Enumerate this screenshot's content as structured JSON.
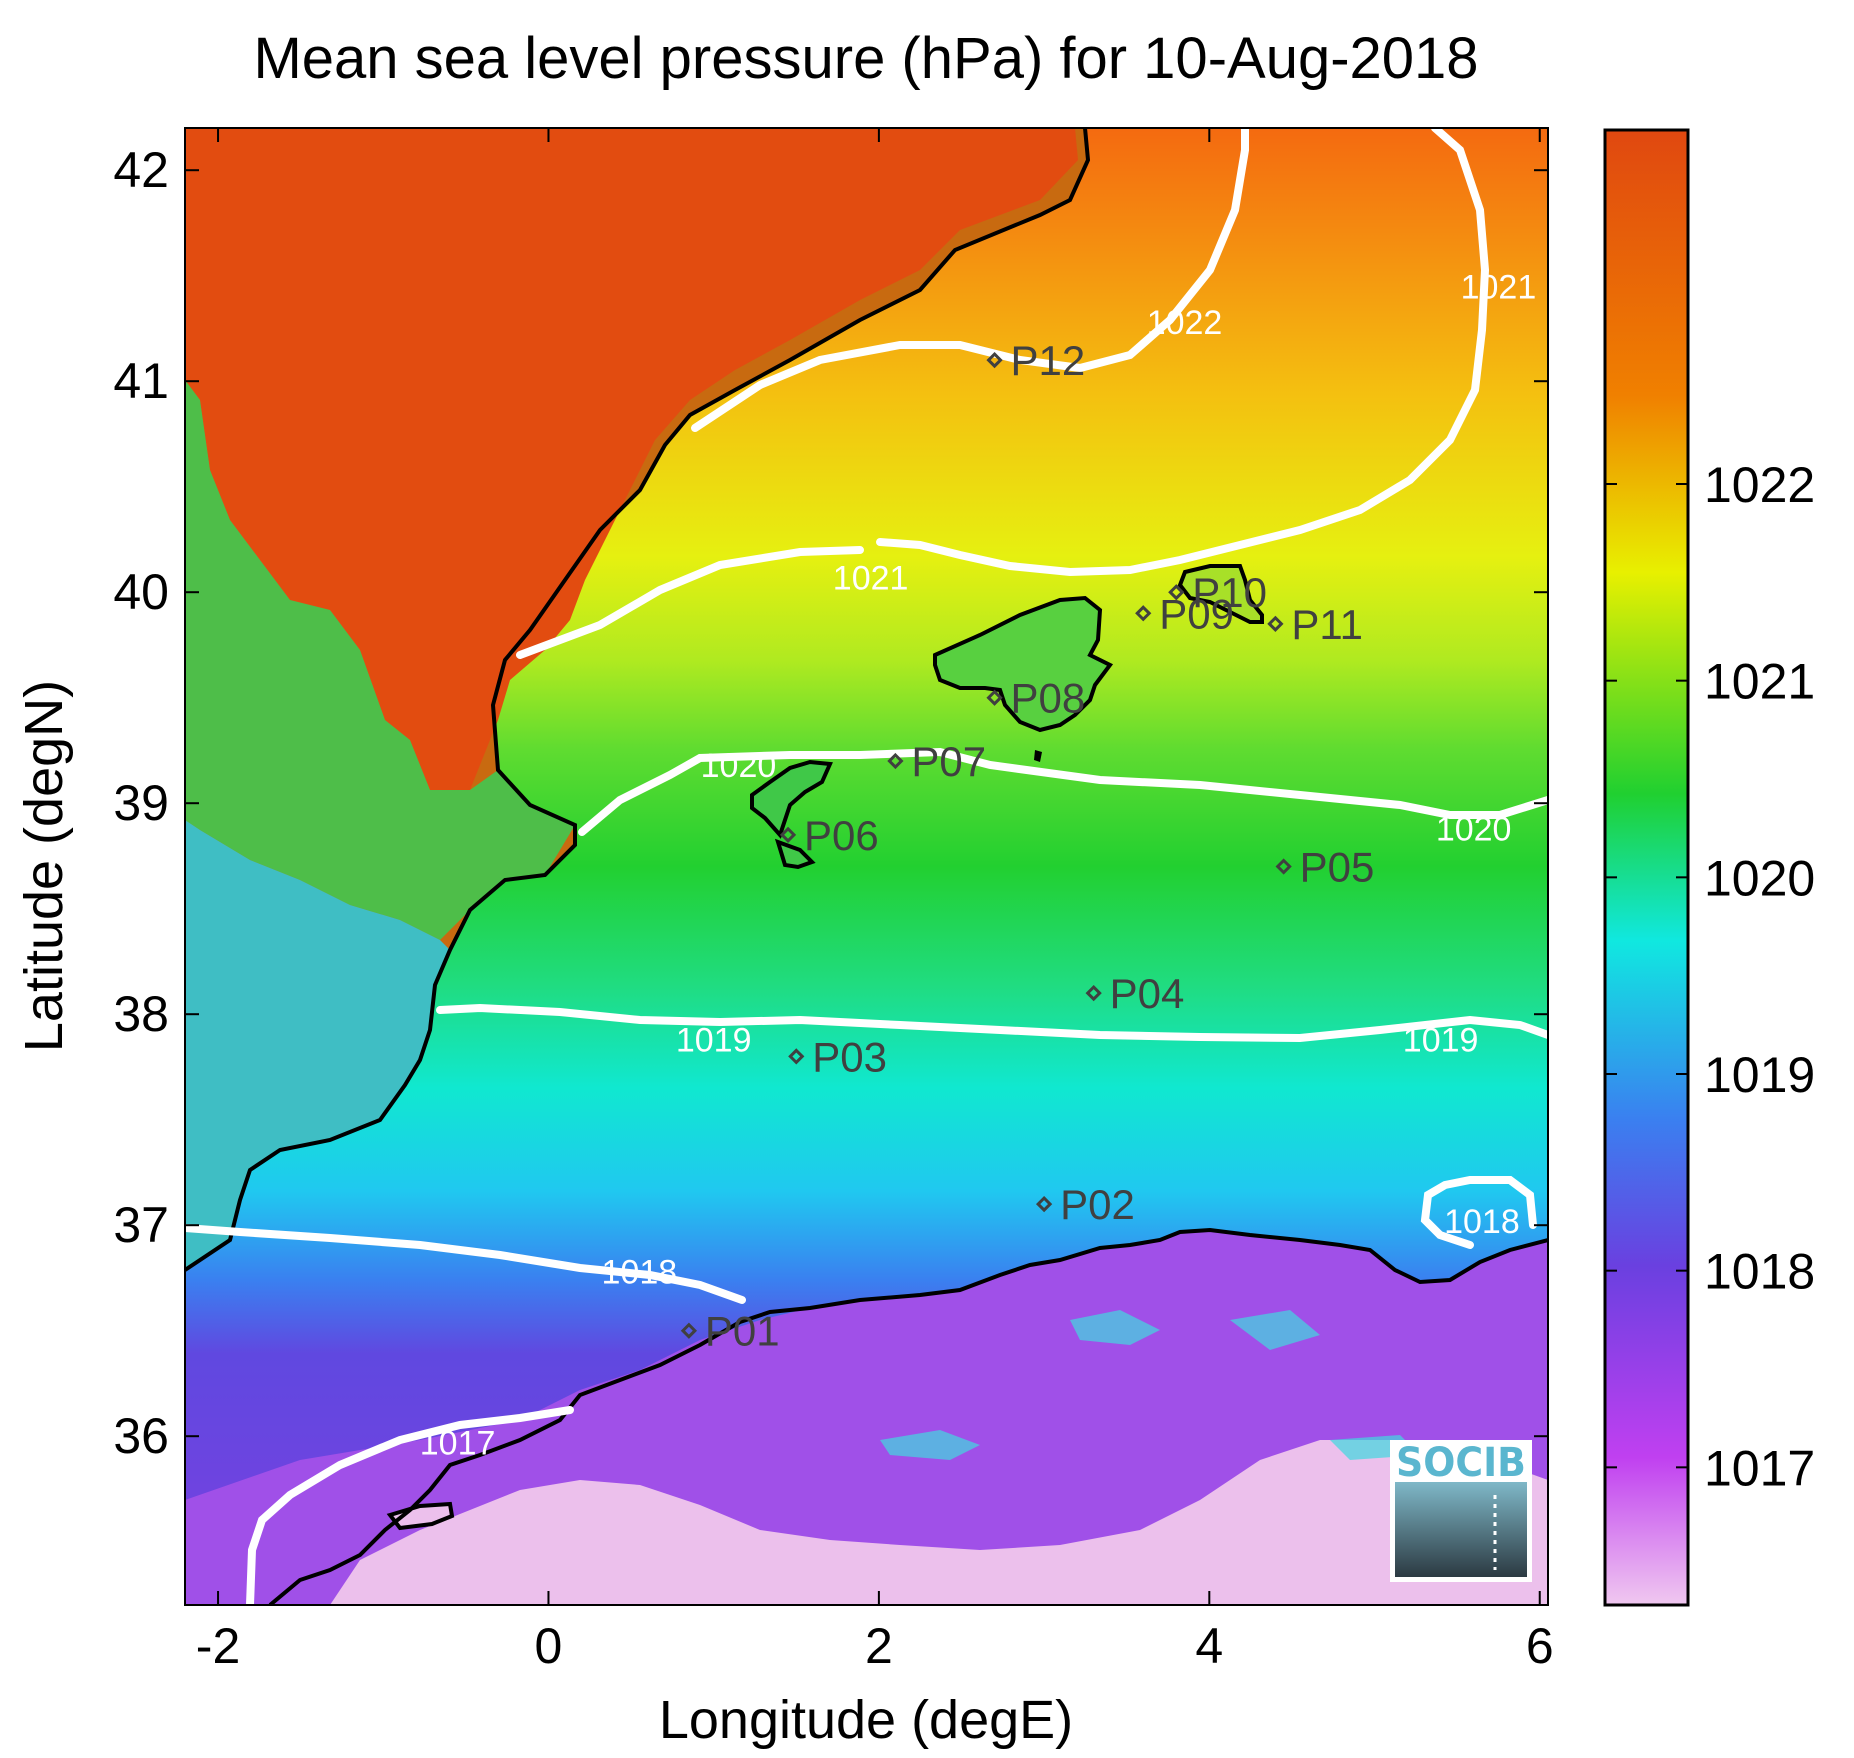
{
  "title": "Mean sea level pressure (hPa) for 10-Aug-2018",
  "map": {
    "xlabel": "Longitude (degE)",
    "ylabel": "Latitude (degN)",
    "lon_range": [
      -2.2,
      6.05
    ],
    "lat_range": [
      35.2,
      42.2
    ],
    "x_ticks": [
      {
        "value": -2,
        "label": "-2"
      },
      {
        "value": 0,
        "label": "0"
      },
      {
        "value": 2,
        "label": "2"
      },
      {
        "value": 4,
        "label": "4"
      },
      {
        "value": 6,
        "label": "6"
      }
    ],
    "y_ticks": [
      {
        "value": 36,
        "label": "36"
      },
      {
        "value": 37,
        "label": "37"
      },
      {
        "value": 38,
        "label": "38"
      },
      {
        "value": 39,
        "label": "39"
      },
      {
        "value": 40,
        "label": "40"
      },
      {
        "value": 41,
        "label": "41"
      },
      {
        "value": 42,
        "label": "42"
      }
    ],
    "grid": false
  },
  "colorbar": {
    "range": [
      1016.3,
      1023.8
    ],
    "ticks": [
      {
        "value": 1017,
        "label": "1017"
      },
      {
        "value": 1018,
        "label": "1018"
      },
      {
        "value": 1019,
        "label": "1019"
      },
      {
        "value": 1020,
        "label": "1020"
      },
      {
        "value": 1021,
        "label": "1021"
      },
      {
        "value": 1022,
        "label": "1022"
      }
    ],
    "colors": [
      "#f0c8f0",
      "#c040f0",
      "#6a40e0",
      "#3a80f0",
      "#10e8e0",
      "#20d030",
      "#e8f000",
      "#f08000",
      "#e04810"
    ]
  },
  "stations": [
    {
      "name": "P01",
      "lon": 0.85,
      "lat": 36.5
    },
    {
      "name": "P02",
      "lon": 3.0,
      "lat": 37.1
    },
    {
      "name": "P03",
      "lon": 1.5,
      "lat": 37.8
    },
    {
      "name": "P04",
      "lon": 3.3,
      "lat": 38.1
    },
    {
      "name": "P05",
      "lon": 4.45,
      "lat": 38.7
    },
    {
      "name": "P06",
      "lon": 1.45,
      "lat": 38.85
    },
    {
      "name": "P07",
      "lon": 2.1,
      "lat": 39.2
    },
    {
      "name": "P08",
      "lon": 2.7,
      "lat": 39.5
    },
    {
      "name": "P09",
      "lon": 3.6,
      "lat": 39.9
    },
    {
      "name": "P10",
      "lon": 3.8,
      "lat": 40.0
    },
    {
      "name": "P11",
      "lon": 4.4,
      "lat": 39.85
    },
    {
      "name": "P12",
      "lon": 2.7,
      "lat": 41.1
    }
  ],
  "contour_labels": [
    {
      "text": "1022",
      "lon": 3.85,
      "lat": 41.28
    },
    {
      "text": "1021",
      "lon": 5.75,
      "lat": 41.45
    },
    {
      "text": "1021",
      "lon": 1.95,
      "lat": 40.07
    },
    {
      "text": "1020",
      "lon": 1.15,
      "lat": 39.18
    },
    {
      "text": "1020",
      "lon": 5.6,
      "lat": 38.88
    },
    {
      "text": "1019",
      "lon": 1.0,
      "lat": 37.88
    },
    {
      "text": "1019",
      "lon": 5.4,
      "lat": 37.88
    },
    {
      "text": "1018",
      "lon": 0.55,
      "lat": 36.78
    },
    {
      "text": "1018",
      "lon": 5.65,
      "lat": 37.02
    },
    {
      "text": "1017",
      "lon": -0.55,
      "lat": 35.97
    }
  ],
  "logo": {
    "text": "SOCIB"
  }
}
